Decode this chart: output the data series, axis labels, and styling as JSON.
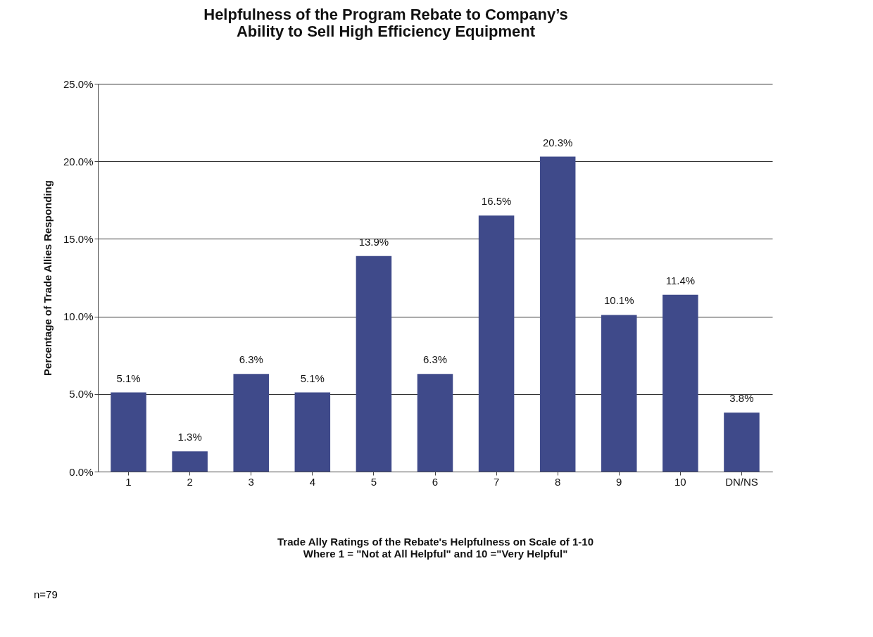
{
  "chart_data": {
    "type": "bar",
    "title": "Helpfulness of the Program Rebate to Company’s\nAbility to Sell High Efficiency Equipment",
    "xlabel": "Trade Ally Ratings of the Rebate's Helpfulness on Scale of 1-10\nWhere 1 = \"Not at All Helpful\" and 10 =\"Very Helpful\"",
    "ylabel": "Percentage of Trade Allies Responding",
    "categories": [
      "1",
      "2",
      "3",
      "4",
      "5",
      "6",
      "7",
      "8",
      "9",
      "10",
      "DN/NS"
    ],
    "values": [
      5.1,
      1.3,
      6.3,
      5.1,
      13.9,
      6.3,
      16.5,
      20.3,
      10.1,
      11.4,
      3.8
    ],
    "value_labels": [
      "5.1%",
      "1.3%",
      "6.3%",
      "5.1%",
      "13.9%",
      "6.3%",
      "16.5%",
      "20.3%",
      "10.1%",
      "11.4%",
      "3.8%"
    ],
    "color": "#3f4a8a",
    "ylim": [
      0,
      25
    ],
    "yticks": [
      {
        "value": 0,
        "label": "0.0%"
      },
      {
        "value": 5,
        "label": "5.0%"
      },
      {
        "value": 10,
        "label": "10.0%"
      },
      {
        "value": 15,
        "label": "15.0%"
      },
      {
        "value": 20,
        "label": "20.0%"
      },
      {
        "value": 25,
        "label": "25.0%"
      }
    ],
    "grid": "y",
    "annotations": [
      "n=79"
    ]
  }
}
